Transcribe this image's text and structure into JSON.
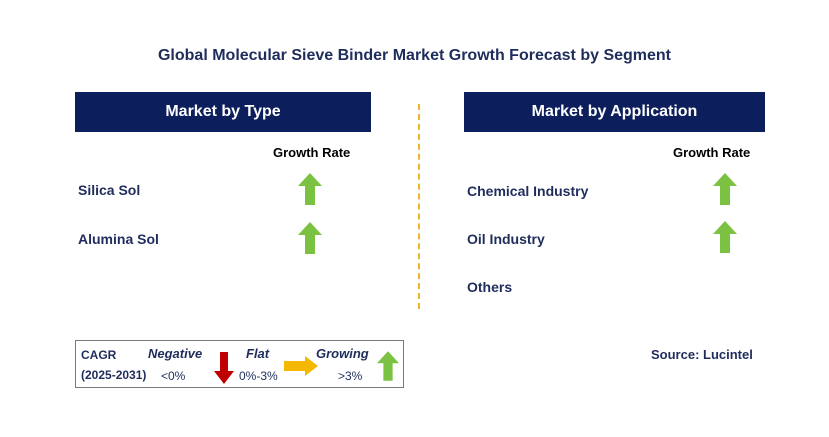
{
  "title": "Global Molecular Sieve Binder Market Growth Forecast by Segment",
  "left_panel": {
    "header": "Market by Type",
    "column_header": "Growth Rate",
    "rows": [
      {
        "label": "Silica Sol",
        "trend": "up"
      },
      {
        "label": "Alumina Sol",
        "trend": "up"
      }
    ]
  },
  "right_panel": {
    "header": "Market by Application",
    "column_header": "Growth Rate",
    "rows": [
      {
        "label": "Chemical Industry",
        "trend": "up"
      },
      {
        "label": "Oil Industry",
        "trend": "up"
      },
      {
        "label": "Others",
        "trend": "none"
      }
    ]
  },
  "legend": {
    "cagr_label": "CAGR",
    "period": "(2025-2031)",
    "negative_label": "Negative",
    "negative_range": "<0%",
    "flat_label": "Flat",
    "flat_range": "0%-3%",
    "growing_label": "Growing",
    "growing_range": ">3%"
  },
  "source": "Source: Lucintel",
  "colors": {
    "header_bg": "#0c1f5c",
    "arrow_up": "#7cc242",
    "arrow_down": "#c00000",
    "arrow_flat": "#f5b800",
    "divider": "#f0b428"
  },
  "icons": {
    "up": "green-up-arrow-icon",
    "down": "red-down-arrow-icon",
    "flat": "yellow-right-arrow-icon"
  }
}
